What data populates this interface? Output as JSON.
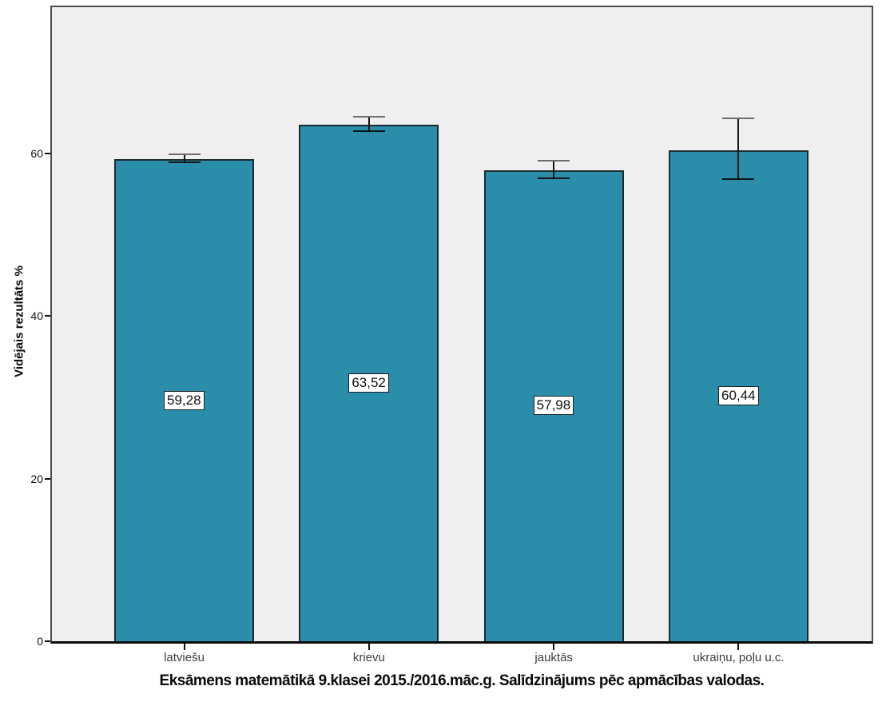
{
  "chart_data": {
    "type": "bar",
    "title": "Eksāmens matemātikā 9.klasei 2015./2016.māc.g. Salīdzinājums pēc apmācības valodas.",
    "ylabel": "Vidējais rezultāts %",
    "xlabel": "",
    "categories": [
      "latviešu",
      "krievu",
      "jauktās",
      "ukraiņu, poļu u.c."
    ],
    "values": [
      59.28,
      63.52,
      57.98,
      60.44
    ],
    "value_labels": [
      "59,28",
      "63,52",
      "57,98",
      "60,44"
    ],
    "error_low": [
      58.9,
      62.8,
      57.0,
      56.9
    ],
    "error_high": [
      59.9,
      64.5,
      59.1,
      64.3
    ],
    "ylim": [
      0,
      78
    ],
    "yticks": [
      0,
      20,
      40,
      60
    ],
    "grid": "off",
    "legend": "none",
    "bar_color": "#2A8DAA",
    "bar_border_color": "#1c2b33",
    "plot_bg": "#EFEFEF",
    "figure_bg": "#ffffff",
    "error_color": "#141414"
  }
}
